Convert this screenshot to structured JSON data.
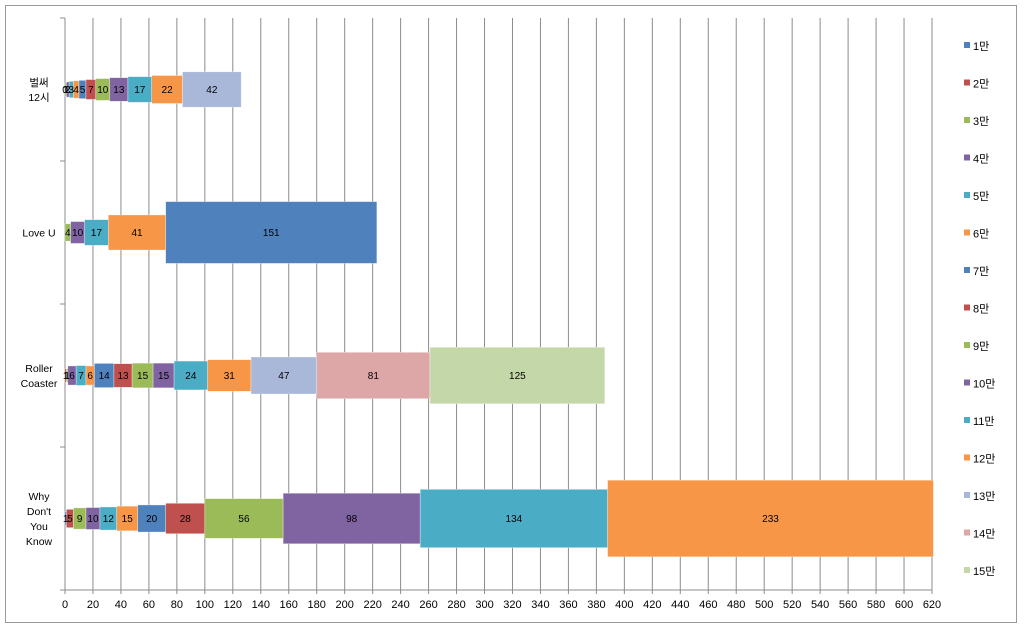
{
  "chart_data": {
    "type": "bar",
    "orientation": "horizontal",
    "stacked": true,
    "title": "",
    "xlabel": "",
    "ylabel": "",
    "xlim": [
      0,
      620
    ],
    "x_ticks": [
      0,
      20,
      40,
      60,
      80,
      100,
      120,
      140,
      160,
      180,
      200,
      220,
      240,
      260,
      280,
      300,
      320,
      340,
      360,
      380,
      400,
      420,
      440,
      460,
      480,
      500,
      520,
      540,
      560,
      580,
      600,
      620
    ],
    "grid": "vertical",
    "legend_position": "right",
    "categories": [
      {
        "lines": [
          "Why",
          "Don't",
          "You",
          "Know"
        ]
      },
      {
        "lines": [
          "Roller",
          "Coaster"
        ]
      },
      {
        "lines": [
          "Love U"
        ]
      },
      {
        "lines": [
          "벌써",
          "12시"
        ]
      }
    ],
    "series": [
      {
        "name": "1만",
        "color": "#4F81BD",
        "values": [
          1,
          0,
          0,
          0
        ]
      },
      {
        "name": "2만",
        "color": "#C0504D",
        "values": [
          5,
          1,
          0,
          0
        ]
      },
      {
        "name": "3만",
        "color": "#9BBB59",
        "values": [
          9,
          1,
          4,
          1
        ]
      },
      {
        "name": "4만",
        "color": "#8064A2",
        "values": [
          10,
          6,
          10,
          2
        ]
      },
      {
        "name": "5만",
        "color": "#4BACC6",
        "values": [
          12,
          7,
          17,
          3
        ]
      },
      {
        "name": "6만",
        "color": "#F79646",
        "values": [
          15,
          6,
          41,
          4
        ]
      },
      {
        "name": "7만",
        "color": "#4F81BD",
        "values": [
          20,
          14,
          151,
          5
        ]
      },
      {
        "name": "8만",
        "color": "#C0504D",
        "values": [
          28,
          13,
          0,
          7
        ]
      },
      {
        "name": "9만",
        "color": "#9BBB59",
        "values": [
          56,
          15,
          0,
          10
        ]
      },
      {
        "name": "10만",
        "color": "#8064A2",
        "values": [
          98,
          15,
          0,
          13
        ]
      },
      {
        "name": "11만",
        "color": "#4BACC6",
        "values": [
          134,
          24,
          0,
          17
        ]
      },
      {
        "name": "12만",
        "color": "#F79646",
        "values": [
          233,
          31,
          0,
          22
        ]
      },
      {
        "name": "13만",
        "color": "#A9B8D9",
        "values": [
          0,
          47,
          0,
          42
        ]
      },
      {
        "name": "14만",
        "color": "#DDA7A7",
        "values": [
          0,
          81,
          0,
          0
        ]
      },
      {
        "name": "15만",
        "color": "#C4D7A8",
        "values": [
          0,
          125,
          0,
          0
        ]
      }
    ],
    "label_visibility": [
      [
        true,
        true,
        true,
        true,
        true,
        true,
        true,
        true,
        true,
        true,
        true,
        true,
        false,
        false,
        false
      ],
      [
        false,
        true,
        true,
        true,
        true,
        true,
        true,
        true,
        true,
        true,
        true,
        true,
        true,
        true,
        true
      ],
      [
        false,
        false,
        true,
        true,
        true,
        true,
        true,
        false,
        false,
        false,
        false,
        false,
        false,
        false,
        false
      ],
      [
        false,
        true,
        true,
        true,
        true,
        true,
        true,
        true,
        true,
        true,
        true,
        true,
        true,
        false,
        false
      ]
    ]
  }
}
